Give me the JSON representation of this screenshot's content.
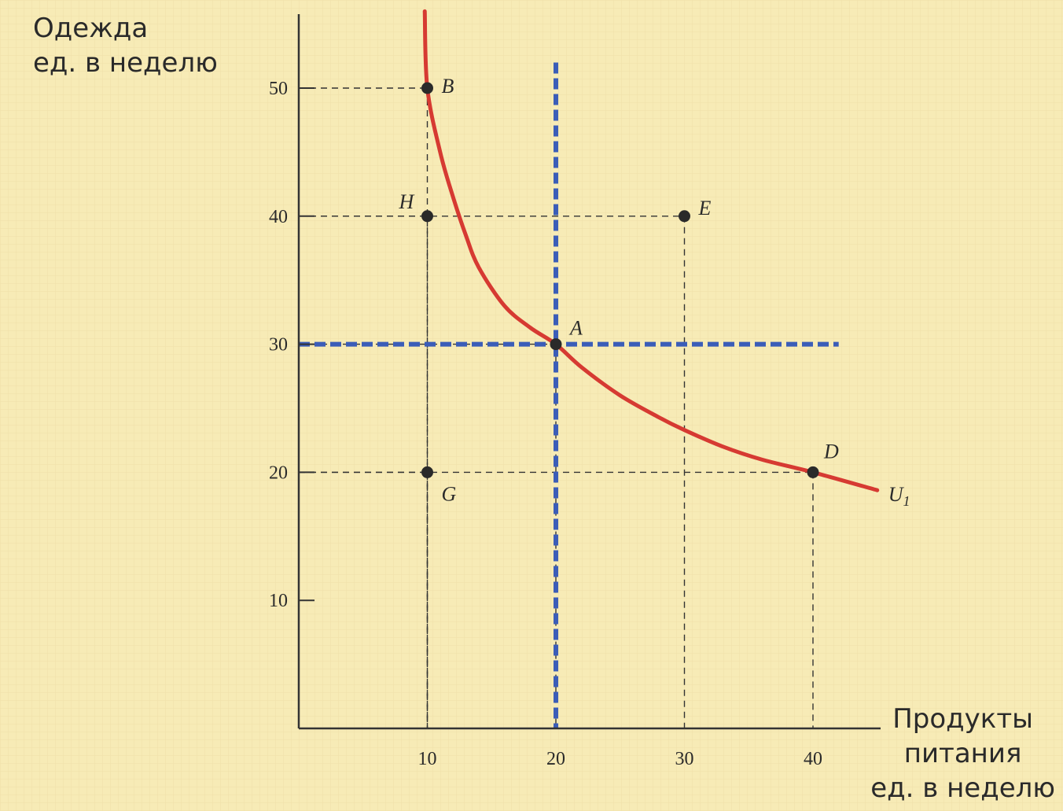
{
  "chart_data": {
    "type": "line",
    "ylabel": [
      "Одежда",
      "ед. в неделю"
    ],
    "xlabel": [
      "Продукты",
      "питания",
      "ед. в неделю"
    ],
    "x_ticks": [
      10,
      20,
      30,
      40
    ],
    "y_ticks": [
      10,
      20,
      30,
      40,
      50
    ],
    "xlim": [
      0,
      50
    ],
    "ylim": [
      0,
      55
    ],
    "curve": {
      "name": "U",
      "name_sub": "1",
      "color": "#d63a32",
      "x": [
        9.8,
        10,
        11,
        12,
        13,
        14,
        16,
        18,
        20,
        22,
        25,
        28,
        30,
        33,
        36,
        40,
        45
      ],
      "y": [
        56,
        50,
        45,
        41.5,
        38.5,
        36,
        33,
        31.3,
        30,
        28.2,
        26,
        24.3,
        23.3,
        22,
        21,
        20,
        18.6
      ]
    },
    "points": [
      {
        "label": "B",
        "x": 10,
        "y": 50
      },
      {
        "label": "H",
        "x": 10,
        "y": 40
      },
      {
        "label": "E",
        "x": 30,
        "y": 40
      },
      {
        "label": "A",
        "x": 20,
        "y": 30
      },
      {
        "label": "D",
        "x": 40,
        "y": 20
      },
      {
        "label": "G",
        "x": 10,
        "y": 20
      }
    ],
    "reference_lines": {
      "x": 20,
      "y": 30,
      "color": "#3b5db8"
    }
  }
}
